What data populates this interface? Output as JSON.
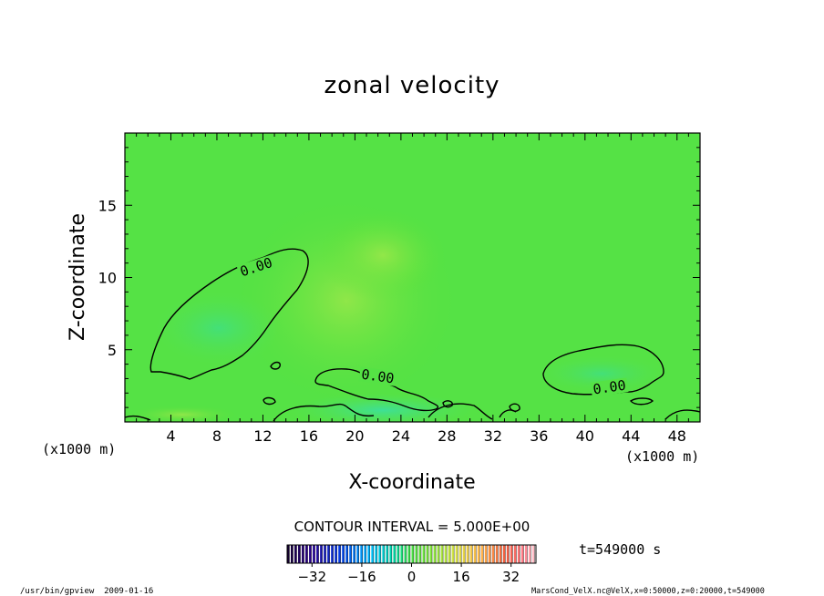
{
  "chart_data": {
    "type": "heatmap",
    "title": "zonal velocity",
    "xlabel": "X-coordinate",
    "ylabel": "Z-coordinate",
    "x_unit_label": "(x1000 m)",
    "x_unit_label_right": "(x1000 m)",
    "xlim": [
      0,
      50
    ],
    "ylim": [
      0,
      20
    ],
    "x_ticks": [
      4,
      8,
      12,
      16,
      20,
      24,
      28,
      32,
      36,
      40,
      44,
      48
    ],
    "y_ticks": [
      5,
      10,
      15
    ],
    "x_tick_labels": [
      "4",
      "8",
      "12",
      "16",
      "20",
      "24",
      "28",
      "32",
      "36",
      "40",
      "44",
      "48"
    ],
    "y_tick_labels": [
      "5",
      "10",
      "15"
    ],
    "field_background_value": 0,
    "contour_interval_text": "CONTOUR INTERVAL = 5.000E+00",
    "contour_labels": [
      "0.00",
      "0.00",
      "0.00"
    ],
    "time_text": "t=549000 s",
    "colorbar": {
      "range": [
        -40,
        40
      ],
      "tick_values": [
        -32,
        -16,
        0,
        16,
        32
      ],
      "tick_labels": [
        "−32",
        "−16",
        "0",
        "16",
        "32"
      ]
    },
    "footer_left": "/usr/bin/gpview  2009-01-16",
    "footer_right": "MarsCond_VelX.nc@VelX,x=0:50000,z=0:20000,t=549000",
    "grid": false
  }
}
